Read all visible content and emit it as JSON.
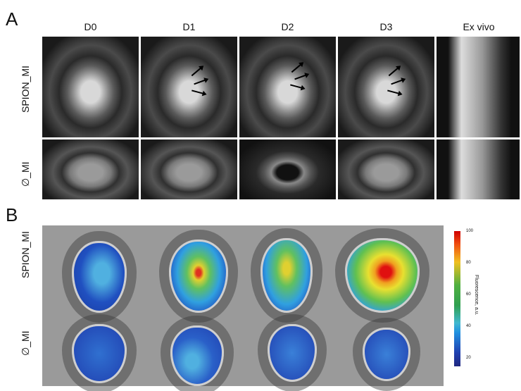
{
  "panel_a": {
    "letter": "A",
    "columns": [
      "D0",
      "D1",
      "D2",
      "D3",
      "Ex vivo"
    ],
    "rows": [
      "SPION_MI",
      "∅_MI"
    ]
  },
  "panel_b": {
    "letter": "B",
    "rows": [
      "SPION_MI",
      "∅_MI"
    ],
    "colorbar": {
      "label": "Fluorescence, a.u.",
      "ticks": [
        "100",
        "80",
        "60",
        "40",
        "20"
      ],
      "range": [
        15,
        100
      ],
      "colormap": "jet"
    }
  }
}
